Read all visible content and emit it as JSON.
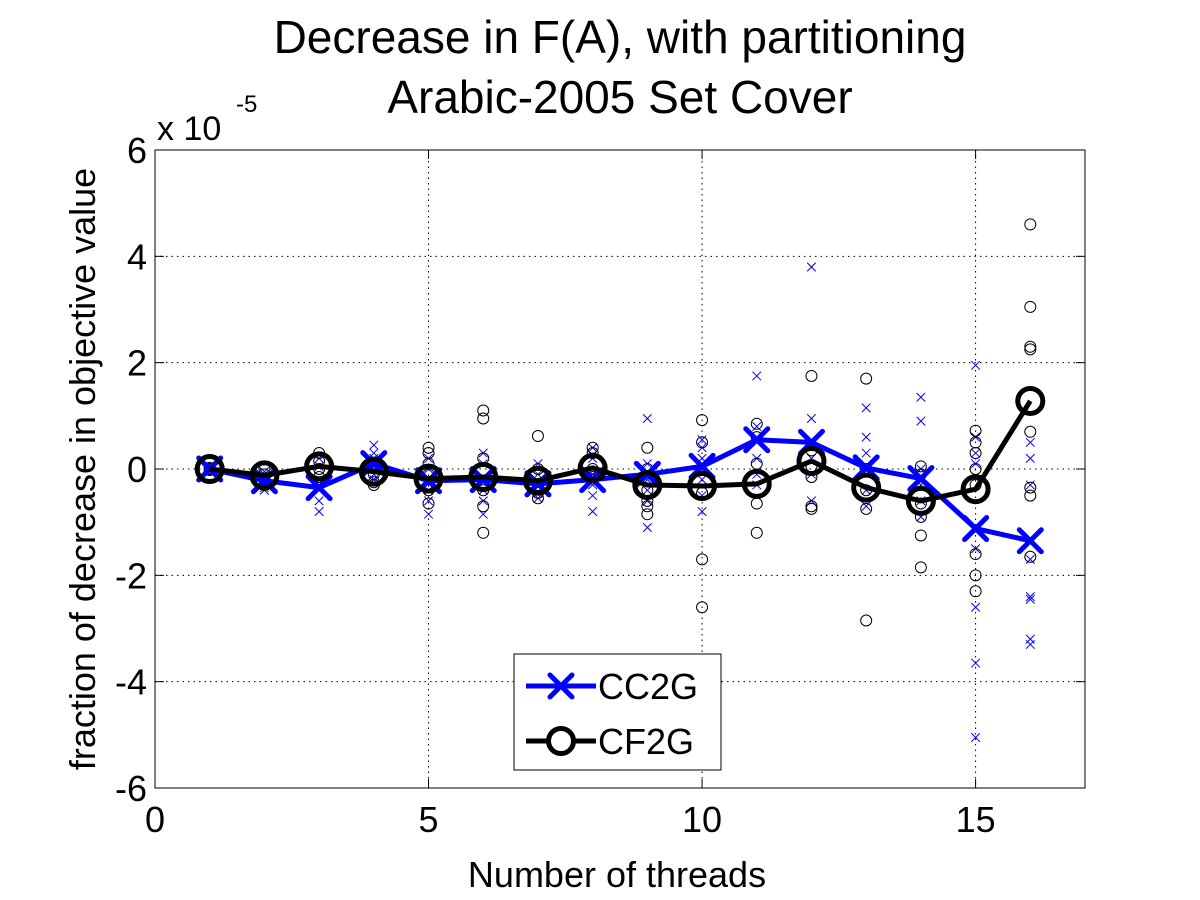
{
  "chart_data": {
    "type": "line",
    "title": "Decrease in F(A), with partitioning",
    "subtitle": "Arabic-2005 Set Cover",
    "xlabel": "Number of threads",
    "ylabel": "fraction of decrease in objective value",
    "y_multiplier": {
      "base": "x 10",
      "exponent": "-5"
    },
    "xlim": [
      0,
      17
    ],
    "ylim": [
      -6,
      6
    ],
    "x_ticks": [
      0,
      5,
      10,
      15
    ],
    "x_tick_labels": [
      "0",
      "5",
      "10",
      "15"
    ],
    "y_ticks": [
      -6,
      -4,
      -2,
      0,
      2,
      4,
      6
    ],
    "y_tick_labels": [
      "-6",
      "-4",
      "-2",
      "0",
      "2",
      "4",
      "6"
    ],
    "grid": true,
    "legend_position": "bottom-center",
    "x": [
      1,
      2,
      3,
      4,
      5,
      6,
      7,
      8,
      9,
      10,
      11,
      12,
      13,
      14,
      15,
      16
    ],
    "series": [
      {
        "name": "CC2G",
        "color": "#0000ff",
        "marker": "x",
        "values": [
          0,
          -0.22,
          -0.35,
          0.1,
          -0.22,
          -0.2,
          -0.28,
          -0.2,
          -0.1,
          0.05,
          0.55,
          0.5,
          0.02,
          -0.18,
          -1.12,
          -1.35
        ],
        "trials": [
          [
            1,
            0
          ],
          [
            1,
            0.03
          ],
          [
            1,
            -0.03
          ],
          [
            2,
            -0.05
          ],
          [
            2,
            -0.2
          ],
          [
            2,
            -0.3
          ],
          [
            2,
            -0.4
          ],
          [
            2,
            -0.1
          ],
          [
            2,
            -0.35
          ],
          [
            3,
            0.2
          ],
          [
            3,
            -0.2
          ],
          [
            3,
            -0.4
          ],
          [
            3,
            -0.6
          ],
          [
            3,
            -0.8
          ],
          [
            3,
            0.05
          ],
          [
            4,
            0.45
          ],
          [
            4,
            0.2
          ],
          [
            4,
            0.05
          ],
          [
            4,
            -0.1
          ],
          [
            4,
            -0.2
          ],
          [
            4,
            0.3
          ],
          [
            5,
            0.2
          ],
          [
            5,
            0.0
          ],
          [
            5,
            -0.2
          ],
          [
            5,
            -0.4
          ],
          [
            5,
            -0.6
          ],
          [
            5,
            -0.85
          ],
          [
            6,
            0.3
          ],
          [
            6,
            0.1
          ],
          [
            6,
            -0.2
          ],
          [
            6,
            -0.4
          ],
          [
            6,
            -0.6
          ],
          [
            6,
            -0.85
          ],
          [
            7,
            0.1
          ],
          [
            7,
            -0.1
          ],
          [
            7,
            -0.3
          ],
          [
            7,
            -0.45
          ],
          [
            7,
            -0.55
          ],
          [
            8,
            0.4
          ],
          [
            8,
            0.2
          ],
          [
            8,
            -0.1
          ],
          [
            8,
            -0.3
          ],
          [
            8,
            -0.5
          ],
          [
            8,
            -0.8
          ],
          [
            9,
            0.95
          ],
          [
            9,
            0.1
          ],
          [
            9,
            -0.2
          ],
          [
            9,
            -0.4
          ],
          [
            9,
            -0.6
          ],
          [
            9,
            -1.1
          ],
          [
            10,
            0.55
          ],
          [
            10,
            0.4
          ],
          [
            10,
            0.2
          ],
          [
            10,
            -0.2
          ],
          [
            10,
            -0.5
          ],
          [
            10,
            -0.8
          ],
          [
            11,
            1.75
          ],
          [
            11,
            0.8
          ],
          [
            11,
            0.5
          ],
          [
            11,
            0.2
          ],
          [
            11,
            -0.1
          ],
          [
            11,
            -0.3
          ],
          [
            12,
            3.8
          ],
          [
            12,
            0.95
          ],
          [
            12,
            0.5
          ],
          [
            12,
            0.2
          ],
          [
            12,
            -0.1
          ],
          [
            12,
            -0.6
          ],
          [
            13,
            1.15
          ],
          [
            13,
            0.6
          ],
          [
            13,
            0.3
          ],
          [
            13,
            0.0
          ],
          [
            13,
            -0.4
          ],
          [
            13,
            -0.7
          ],
          [
            14,
            1.35
          ],
          [
            14,
            0.9
          ],
          [
            14,
            0.0
          ],
          [
            14,
            -0.3
          ],
          [
            14,
            -0.6
          ],
          [
            14,
            -0.9
          ],
          [
            15,
            1.95
          ],
          [
            15,
            0.6
          ],
          [
            15,
            0.3
          ],
          [
            15,
            0.1
          ],
          [
            15,
            -1.5
          ],
          [
            15,
            -2.6
          ],
          [
            15,
            -3.65
          ],
          [
            15,
            -5.05
          ],
          [
            16,
            0.5
          ],
          [
            16,
            0.2
          ],
          [
            16,
            -0.3
          ],
          [
            16,
            -1.7
          ],
          [
            16,
            -2.4
          ],
          [
            16,
            -2.45
          ],
          [
            16,
            -3.2
          ],
          [
            16,
            -3.3
          ]
        ]
      },
      {
        "name": "CF2G",
        "color": "#000000",
        "marker": "o",
        "values": [
          0,
          -0.12,
          0.05,
          -0.05,
          -0.18,
          -0.15,
          -0.22,
          0.02,
          -0.3,
          -0.32,
          -0.28,
          0.15,
          -0.35,
          -0.6,
          -0.38,
          1.28
        ],
        "trials": [
          [
            1,
            0
          ],
          [
            1,
            0.02
          ],
          [
            1,
            -0.02
          ],
          [
            2,
            0.0
          ],
          [
            2,
            -0.1
          ],
          [
            2,
            -0.2
          ],
          [
            2,
            -0.3
          ],
          [
            3,
            0.3
          ],
          [
            3,
            0.15
          ],
          [
            3,
            0.0
          ],
          [
            3,
            -0.15
          ],
          [
            4,
            0.1
          ],
          [
            4,
            -0.1
          ],
          [
            4,
            -0.25
          ],
          [
            4,
            -0.3
          ],
          [
            5,
            0.4
          ],
          [
            5,
            0.3
          ],
          [
            5,
            0.1
          ],
          [
            5,
            -0.1
          ],
          [
            5,
            -0.4
          ],
          [
            5,
            -0.65
          ],
          [
            6,
            1.1
          ],
          [
            6,
            0.95
          ],
          [
            6,
            0.2
          ],
          [
            6,
            -0.4
          ],
          [
            6,
            -0.7
          ],
          [
            6,
            -1.2
          ],
          [
            7,
            0.62
          ],
          [
            7,
            0.0
          ],
          [
            7,
            -0.3
          ],
          [
            7,
            -0.45
          ],
          [
            7,
            -0.55
          ],
          [
            8,
            0.4
          ],
          [
            8,
            0.3
          ],
          [
            8,
            0.0
          ],
          [
            8,
            -0.15
          ],
          [
            9,
            0.4
          ],
          [
            9,
            0.0
          ],
          [
            9,
            -0.4
          ],
          [
            9,
            -0.6
          ],
          [
            9,
            -0.7
          ],
          [
            9,
            -0.85
          ],
          [
            10,
            0.92
          ],
          [
            10,
            0.5
          ],
          [
            10,
            -0.45
          ],
          [
            10,
            -1.7
          ],
          [
            10,
            -2.6
          ],
          [
            11,
            0.85
          ],
          [
            11,
            0.6
          ],
          [
            11,
            0.1
          ],
          [
            11,
            -0.65
          ],
          [
            11,
            -1.2
          ],
          [
            12,
            1.75
          ],
          [
            12,
            0.35
          ],
          [
            12,
            0.05
          ],
          [
            12,
            -0.15
          ],
          [
            12,
            -0.7
          ],
          [
            12,
            -0.75
          ],
          [
            13,
            1.7
          ],
          [
            13,
            0.0
          ],
          [
            13,
            -0.4
          ],
          [
            13,
            -0.75
          ],
          [
            13,
            -2.85
          ],
          [
            14,
            0.05
          ],
          [
            14,
            -0.1
          ],
          [
            14,
            -0.65
          ],
          [
            14,
            -0.9
          ],
          [
            14,
            -1.25
          ],
          [
            14,
            -1.85
          ],
          [
            15,
            0.72
          ],
          [
            15,
            0.5
          ],
          [
            15,
            0.3
          ],
          [
            15,
            0.0
          ],
          [
            15,
            -0.3
          ],
          [
            15,
            -1.6
          ],
          [
            15,
            -2.0
          ],
          [
            15,
            -2.3
          ],
          [
            16,
            4.6
          ],
          [
            16,
            3.05
          ],
          [
            16,
            2.3
          ],
          [
            16,
            2.25
          ],
          [
            16,
            0.7
          ],
          [
            16,
            -0.35
          ],
          [
            16,
            -0.5
          ],
          [
            16,
            -1.65
          ]
        ]
      }
    ]
  }
}
